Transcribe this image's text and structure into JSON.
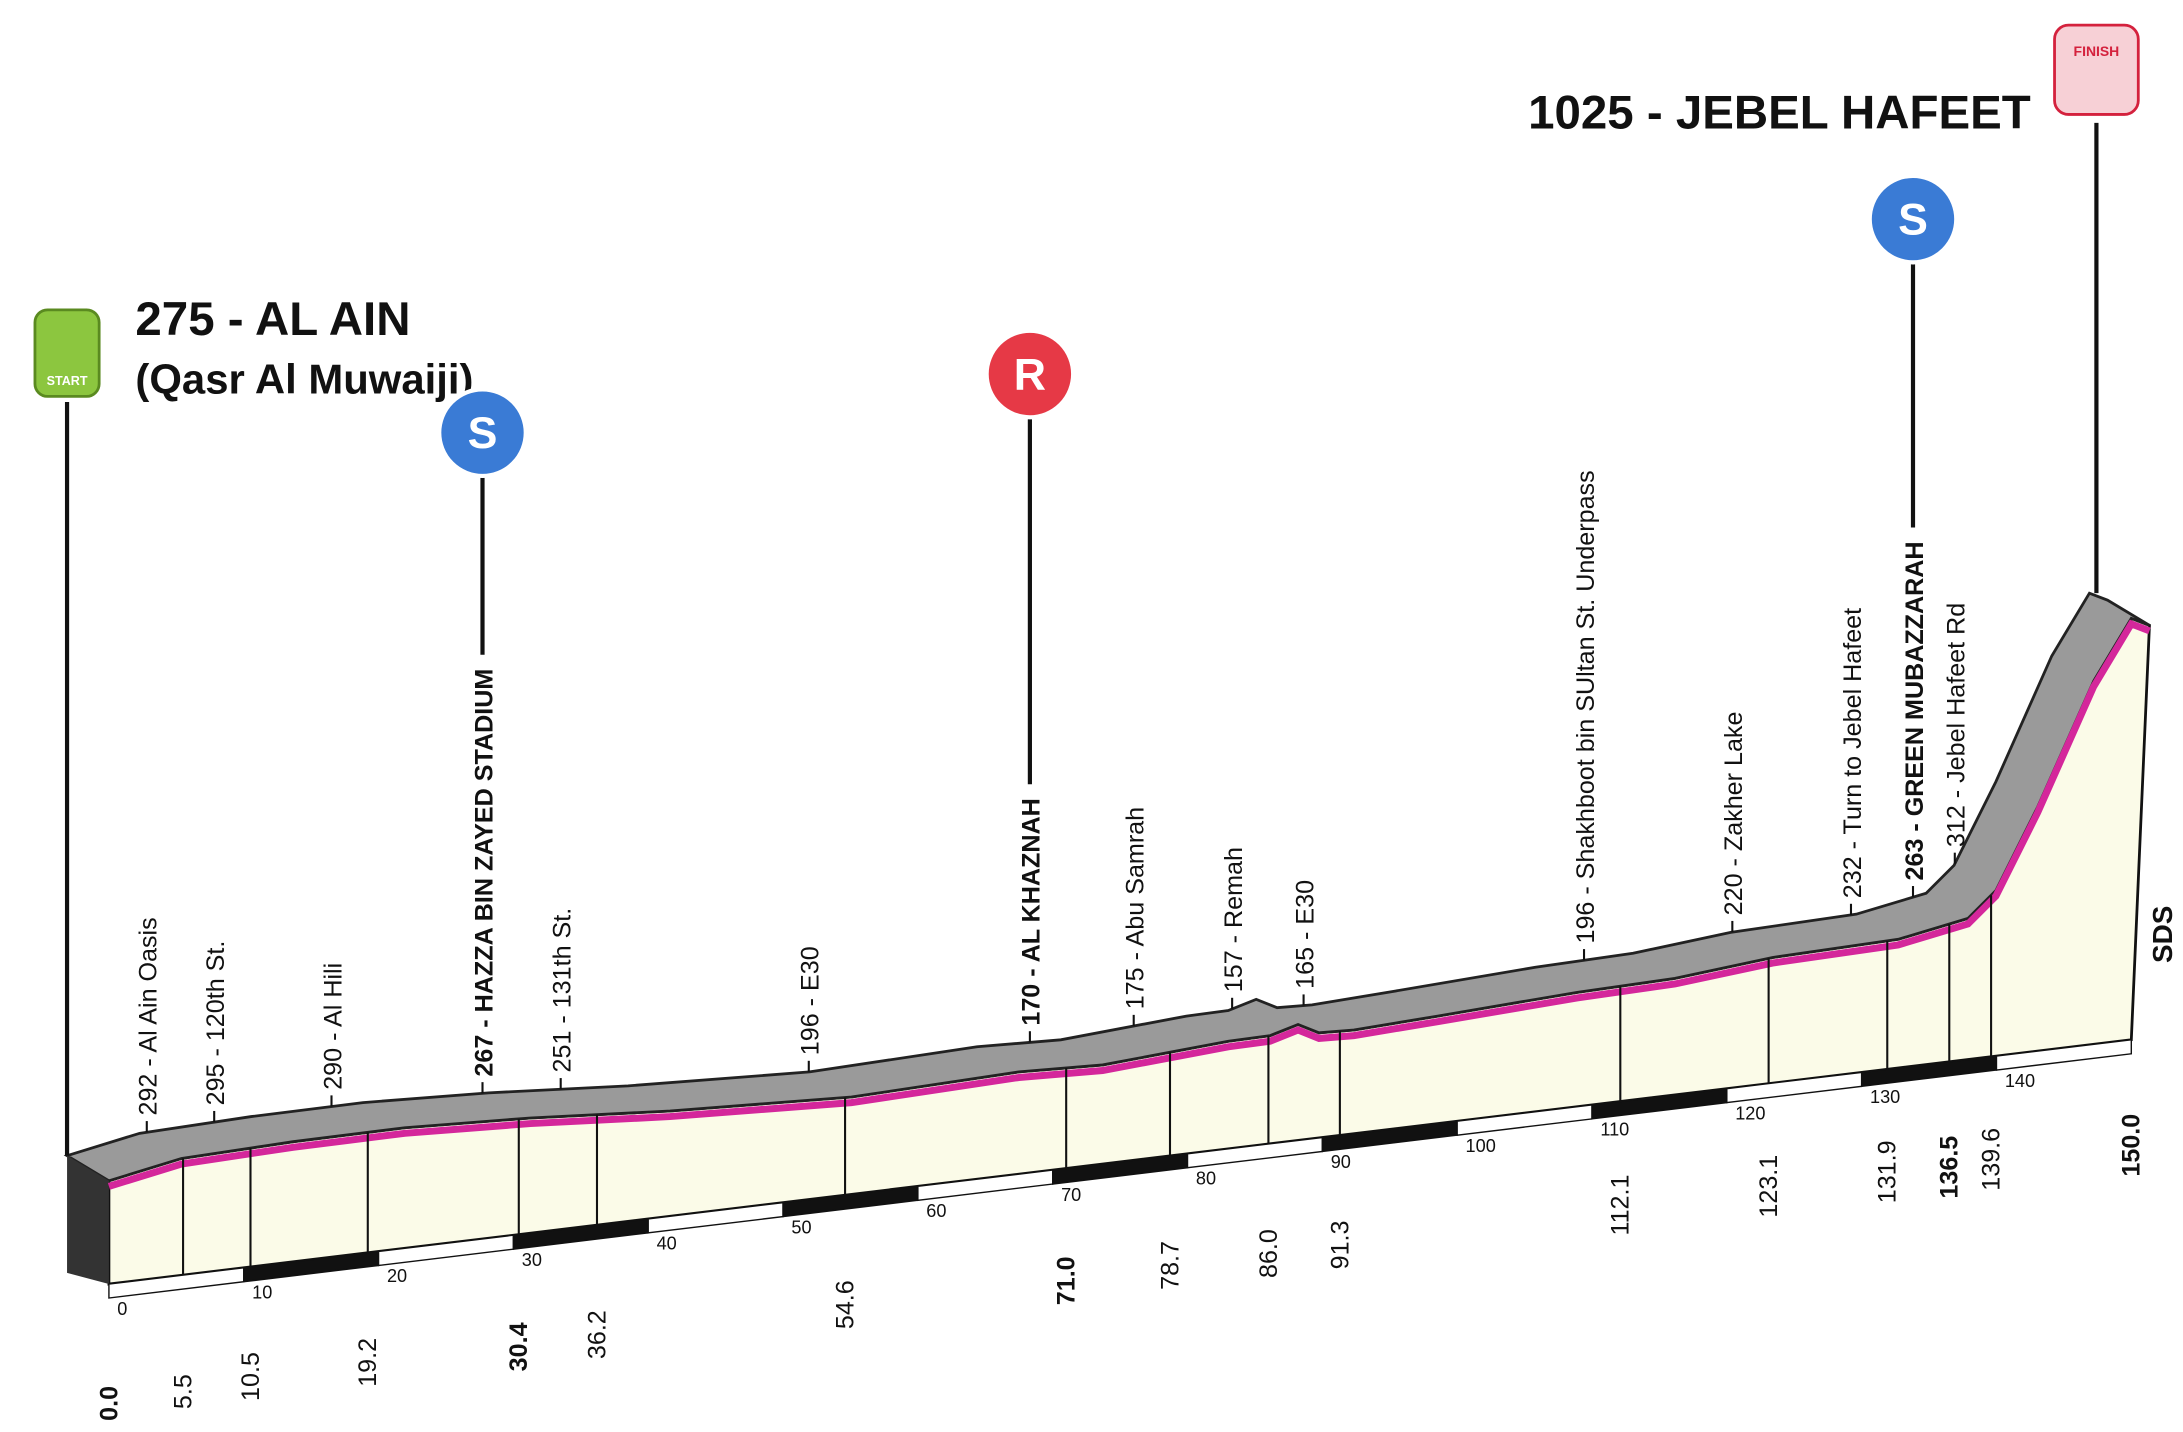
{
  "start": {
    "badge": "START",
    "title": "275 - AL AIN",
    "subtitle": "(Qasr Al Muwaiji)",
    "km": "0.0"
  },
  "finish": {
    "badge": "FINISH",
    "title": "1025 - JEBEL HAFEET",
    "km": "150.0"
  },
  "points": [
    {
      "km": "5.5",
      "label": "292 - Al Ain Oasis"
    },
    {
      "km": "10.5",
      "label": "295 - 120th St."
    },
    {
      "km": "19.2",
      "label": "290 - Al Hili"
    },
    {
      "km": "30.4",
      "label": "267 - HAZZA BIN ZAYED STADIUM",
      "bold": true,
      "badge": "S"
    },
    {
      "km": "36.2",
      "label": "251 - 131th St."
    },
    {
      "km": "54.6",
      "label": "196 - E30"
    },
    {
      "km": "71.0",
      "label": "170 - AL KHAZNAH",
      "bold": true,
      "badge": "R"
    },
    {
      "km": "78.7",
      "label": "175 - Abu Samrah"
    },
    {
      "km": "86.0",
      "label": "157 - Remah"
    },
    {
      "km": "91.3",
      "label": "165 - E30"
    },
    {
      "km": "112.1",
      "label": "196 - Shakhboot  bin SUltan St. Underpass"
    },
    {
      "km": "123.1",
      "label": "220 - Zakher Lake"
    },
    {
      "km": "131.9",
      "label": "232 - Turn to Jebel Hafeet"
    },
    {
      "km": "136.5",
      "label": "263 - GREEN MUBAZZARAH",
      "bold": true,
      "badge": "S"
    },
    {
      "km": "139.6",
      "label": "312 - Jebel Hafeet Rd"
    }
  ],
  "km_ticks": [
    "0",
    "10",
    "20",
    "30",
    "40",
    "50",
    "60",
    "70",
    "80",
    "90",
    "100",
    "110",
    "120",
    "130",
    "140"
  ],
  "brand": "SDS"
}
